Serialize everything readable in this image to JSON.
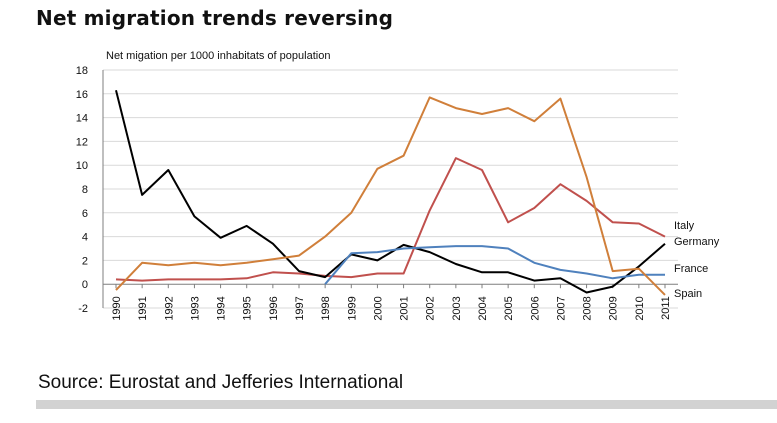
{
  "page": {
    "title": "Net migration trends reversing",
    "source": "Source: Eurostat and Jefferies International"
  },
  "chart_data": {
    "type": "line",
    "ylabel": "Net migation per 1000 inhabitats of population",
    "ylim": [
      -2,
      18
    ],
    "y_ticks": [
      -2,
      0,
      2,
      4,
      6,
      8,
      10,
      12,
      14,
      16,
      18
    ],
    "grid": "horizontal",
    "legend": "line-end labels",
    "x": [
      "1990",
      "1991",
      "1992",
      "1993",
      "1994",
      "1995",
      "1996",
      "1997",
      "1998",
      "1999",
      "2000",
      "2001",
      "2002",
      "2003",
      "2004",
      "2005",
      "2006",
      "2007",
      "2008",
      "2009",
      "2010",
      "2011"
    ],
    "series": [
      {
        "name": "Italy",
        "color": "#c0504d",
        "values": [
          0.4,
          0.3,
          0.4,
          0.4,
          0.4,
          0.5,
          1.0,
          0.9,
          0.7,
          0.6,
          0.9,
          0.9,
          6.2,
          10.6,
          9.6,
          5.2,
          6.4,
          8.4,
          7.0,
          5.2,
          5.1,
          4.0
        ]
      },
      {
        "name": "Germany",
        "color": "#000000",
        "values": [
          16.3,
          7.5,
          9.6,
          5.7,
          3.9,
          4.9,
          3.4,
          1.1,
          0.6,
          2.5,
          2.0,
          3.3,
          2.7,
          1.7,
          1.0,
          1.0,
          0.3,
          0.5,
          -0.7,
          -0.2,
          1.5,
          3.4
        ]
      },
      {
        "name": "France",
        "color": "#4f81bd",
        "values": [
          null,
          null,
          null,
          null,
          null,
          null,
          null,
          null,
          0.0,
          2.6,
          2.7,
          3.0,
          3.1,
          3.2,
          3.2,
          3.0,
          1.8,
          1.2,
          0.9,
          0.5,
          0.8,
          0.8
        ]
      },
      {
        "name": "Spain",
        "color": "#d07f3a",
        "values": [
          -0.5,
          1.8,
          1.6,
          1.8,
          1.6,
          1.8,
          2.1,
          2.4,
          4.0,
          6.0,
          9.7,
          10.8,
          15.7,
          14.8,
          14.3,
          14.8,
          13.7,
          15.6,
          9.0,
          1.1,
          1.3,
          -0.9
        ]
      }
    ]
  },
  "colors": {
    "grid": "#d9d9d9",
    "axis": "#7f7f7f"
  }
}
